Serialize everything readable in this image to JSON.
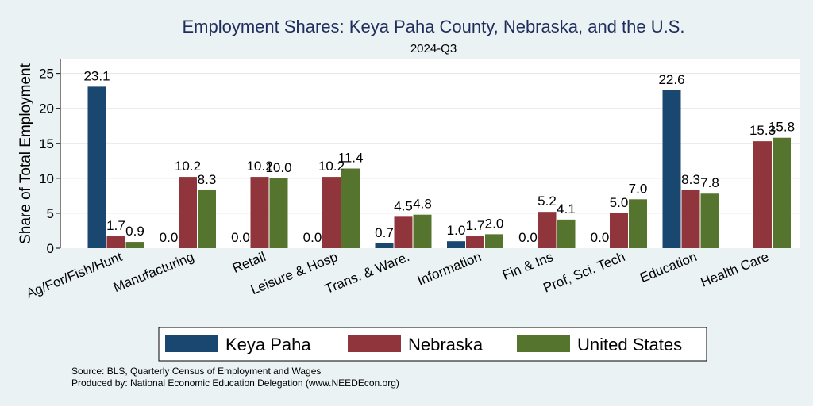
{
  "chart_data": {
    "type": "bar",
    "title": "Employment Shares: Keya Paha County, Nebraska, and the U.S.",
    "subtitle": "2024-Q3",
    "ylabel": "Share of Total Employment",
    "xlabel": "",
    "ylim": [
      0,
      27
    ],
    "yticks": [
      0,
      5,
      10,
      15,
      20,
      25
    ],
    "grid": true,
    "legend_position": "bottom",
    "categories": [
      "Ag/For/Fish/Hunt",
      "Manufacturing",
      "Retail",
      "Leisure & Hosp",
      "Trans. & Ware.",
      "Information",
      "Fin & Ins",
      "Prof, Sci, Tech",
      "Education",
      "Health Care"
    ],
    "series": [
      {
        "name": "Keya Paha",
        "color": "#1a476f",
        "values": [
          23.1,
          0.0,
          0.0,
          0.0,
          0.7,
          1.0,
          0.0,
          0.0,
          22.6,
          null
        ],
        "labels": [
          "23.1",
          "0.0",
          "0.0",
          "0.0",
          "0.7",
          "1.0",
          "0.0",
          "0.0",
          "22.6",
          ""
        ]
      },
      {
        "name": "Nebraska",
        "color": "#90353b",
        "values": [
          1.7,
          10.2,
          10.2,
          10.2,
          4.5,
          1.7,
          5.2,
          5.0,
          8.3,
          15.3
        ],
        "labels": [
          "1.7",
          "10.2",
          "10.2",
          "10.2",
          "4.5",
          "1.7",
          "5.2",
          "5.0",
          "8.3",
          "15.3"
        ]
      },
      {
        "name": "United States",
        "color": "#55752f",
        "values": [
          0.9,
          8.3,
          10.0,
          11.4,
          4.8,
          2.0,
          4.1,
          7.0,
          7.8,
          15.8
        ],
        "labels": [
          "0.9",
          "8.3",
          "10.0",
          "11.4",
          "4.8",
          "2.0",
          "4.1",
          "7.0",
          "7.8",
          "15.8"
        ]
      }
    ]
  },
  "source_lines": [
    "Source: BLS, Quarterly Census of Employment and Wages",
    "Produced by: National Economic Education Delegation (www.NEEDEcon.org)"
  ]
}
